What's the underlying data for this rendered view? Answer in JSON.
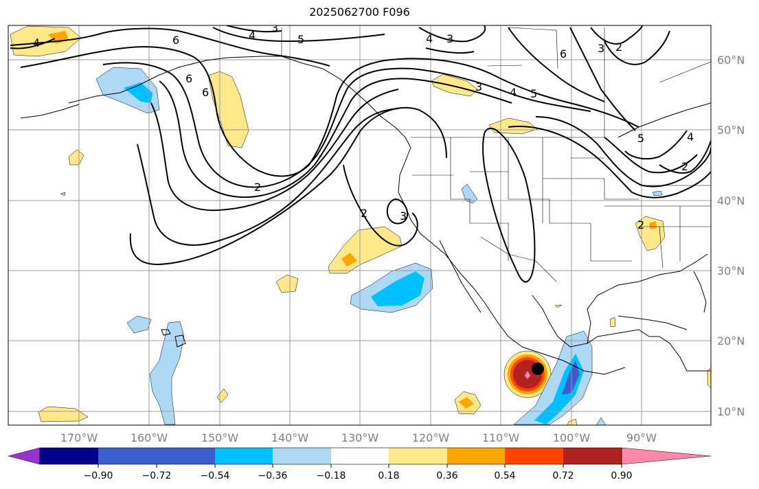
{
  "title": "2025062700 F096",
  "map": {
    "lat_labels": [
      "60°N",
      "50°N",
      "40°N",
      "30°N",
      "20°N",
      "10°N"
    ],
    "lon_labels": [
      "170°W",
      "160°W",
      "150°W",
      "140°W",
      "130°W",
      "120°W",
      "110°W",
      "100°W",
      "90°W"
    ],
    "contour_labels": [
      "4",
      "3",
      "4",
      "5",
      "6",
      "6",
      "4",
      "3",
      "3",
      "2",
      "6",
      "3",
      "4",
      "5",
      "6",
      "5",
      "4",
      "2",
      "2",
      "2",
      "3",
      "2"
    ],
    "marker": "storm-center-dot"
  },
  "colorbar": {
    "ticks": [
      "−0.90",
      "−0.72",
      "−0.54",
      "−0.36",
      "−0.18",
      "0.18",
      "0.36",
      "0.54",
      "0.72",
      "0.90"
    ],
    "colors": [
      "#9932cc",
      "#00008b",
      "#3a5fcd",
      "#00bfff",
      "#add8f6",
      "#ffffff",
      "#ffe88a",
      "#ffa500",
      "#ff4500",
      "#b22222",
      "#ff88aa"
    ]
  }
}
